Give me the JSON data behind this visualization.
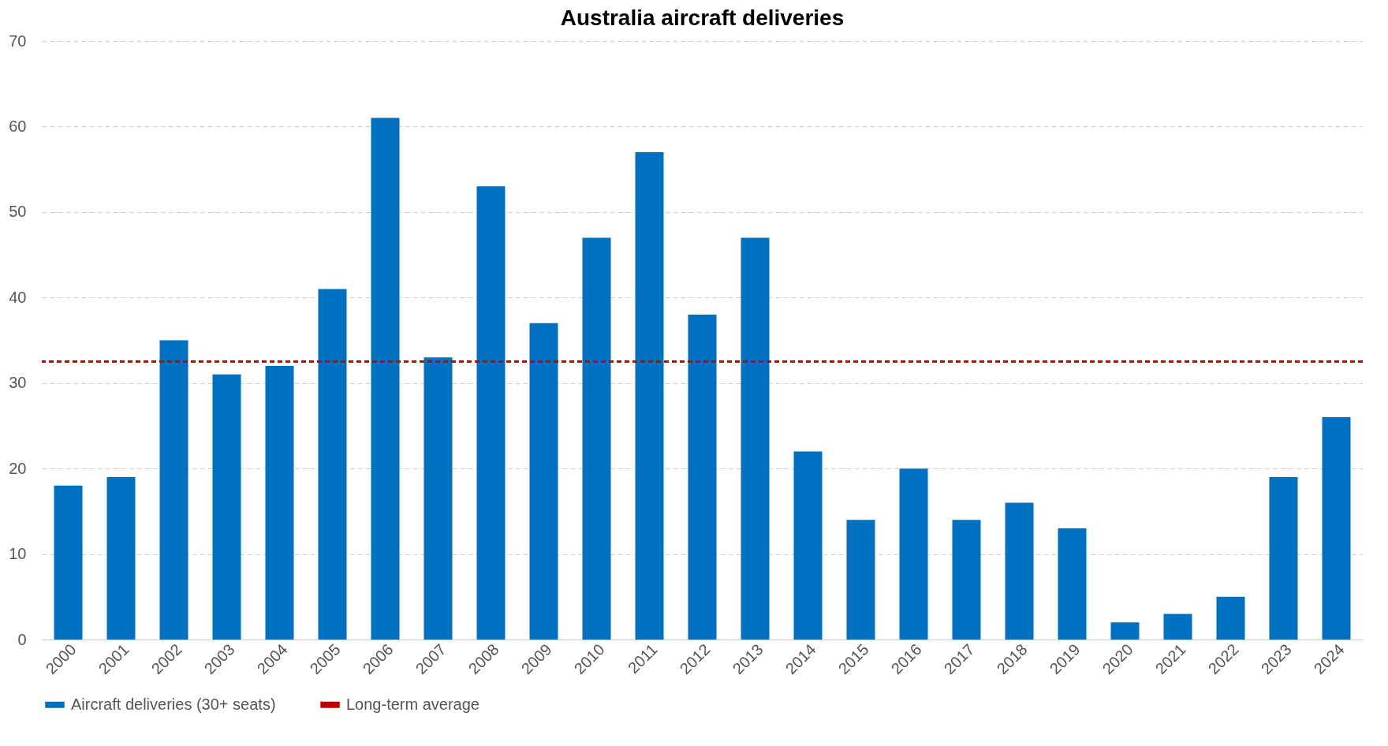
{
  "chart_data": {
    "type": "bar",
    "title": "Australia aircraft deliveries",
    "categories": [
      "2000",
      "2001",
      "2002",
      "2003",
      "2004",
      "2005",
      "2006",
      "2007",
      "2008",
      "2009",
      "2010",
      "2011",
      "2012",
      "2013",
      "2014",
      "2015",
      "2016",
      "2017",
      "2018",
      "2019",
      "2020",
      "2021",
      "2022",
      "2023",
      "2024"
    ],
    "series": [
      {
        "name": "Aircraft deliveries (30+ seats)",
        "color": "#0070c0",
        "values": [
          18,
          19,
          35,
          31,
          32,
          41,
          61,
          33,
          53,
          37,
          47,
          57,
          38,
          47,
          22,
          14,
          20,
          14,
          16,
          13,
          2,
          3,
          5,
          19,
          26
        ]
      }
    ],
    "ref_lines": [
      {
        "axis": "y",
        "value": 32.5,
        "label": "Long-term average",
        "color": "#c00000",
        "line_style": "dashed"
      }
    ],
    "ylim": [
      0,
      70
    ],
    "yticks": [
      0,
      10,
      20,
      30,
      40,
      50,
      60,
      70
    ],
    "grid": "y",
    "legend": "bottom"
  }
}
